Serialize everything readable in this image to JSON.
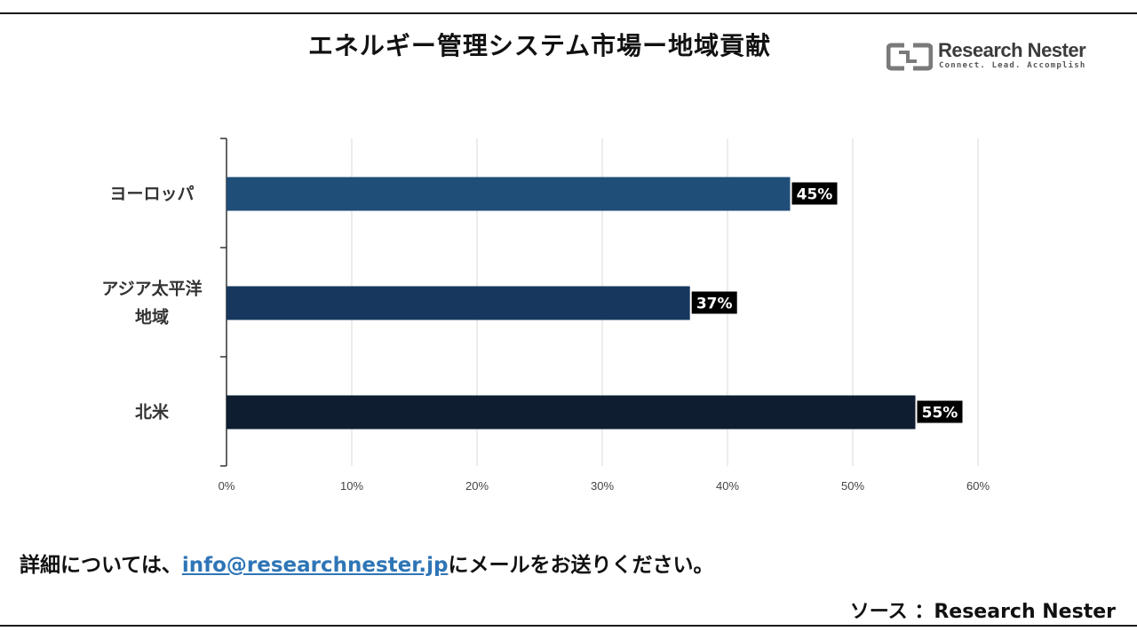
{
  "header": {
    "title": "エネルギー管理システム市場ー地域貢献"
  },
  "logo": {
    "name": "Research Nester",
    "tagline": "Connect. Lead. Accomplish",
    "colors": {
      "mark": "#7a7a7a",
      "text": "#3b3b3b"
    }
  },
  "chart_data": {
    "type": "bar",
    "orientation": "horizontal",
    "categories": [
      {
        "lines": [
          "ヨーロッパ"
        ]
      },
      {
        "lines": [
          "アジア太平洋",
          "地域"
        ]
      },
      {
        "lines": [
          "北米"
        ]
      }
    ],
    "values": [
      45,
      37,
      55
    ],
    "value_labels": [
      "45%",
      "37%",
      "55%"
    ],
    "colors": [
      "#1f4e79",
      "#17375e",
      "#0e1e30"
    ],
    "xlim": [
      0,
      60
    ],
    "xticks": [
      0,
      10,
      20,
      30,
      40,
      50,
      60
    ],
    "xtick_labels": [
      "0%",
      "10%",
      "20%",
      "30%",
      "40%",
      "50%",
      "60%"
    ],
    "grid": "vertical",
    "legend": "none",
    "title": "",
    "xlabel": "",
    "ylabel": ""
  },
  "footer": {
    "note_prefix": "詳細については、",
    "email": "info@researchnester.jp",
    "note_suffix": "にメールをお送りください。",
    "source": "ソース ：Research Nester"
  }
}
